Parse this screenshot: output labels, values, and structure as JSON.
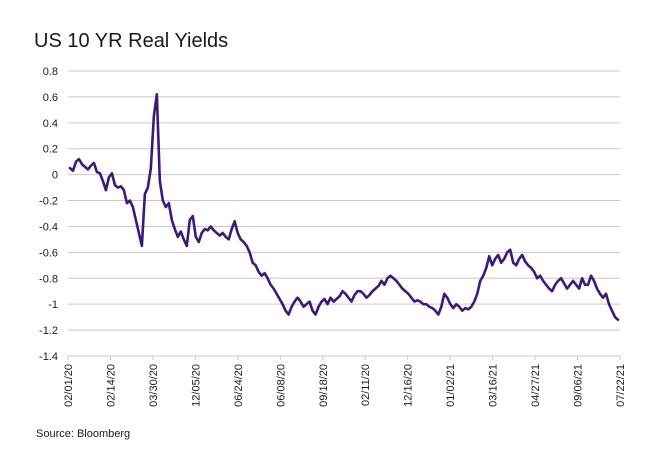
{
  "chart_data": {
    "type": "line",
    "title": "US 10 YR Real Yields",
    "xlabel": "",
    "ylabel": "",
    "ylim": [
      -1.4,
      0.8
    ],
    "yticks": [
      0.8,
      0.6,
      0.4,
      0.2,
      0,
      -0.2,
      -0.4,
      -0.6,
      -0.8,
      -1,
      -1.2,
      -1.4
    ],
    "ytick_labels": [
      "0.8",
      "0.6",
      "0.4",
      "0.2",
      "0",
      "-0.2",
      "-0.4",
      "-0.6",
      "-0.8",
      "-1",
      "-1.2",
      "-1.4"
    ],
    "xtick_labels": [
      "02/01/20",
      "02/14/20",
      "03/30/20",
      "12/05/20",
      "06/24/20",
      "06/08/20",
      "09/18/20",
      "02/11/20",
      "12/16/20",
      "01/02/21",
      "03/16/21",
      "04/27/21",
      "09/06/21",
      "07/22/21"
    ],
    "grid": "horizontal",
    "line_color": "#3d1a78",
    "series": [
      {
        "values": [
          0.05,
          0.03,
          0.1,
          0.12,
          0.08,
          0.06,
          0.04,
          0.07,
          0.09,
          0.02,
          0.01,
          -0.05,
          -0.12,
          -0.02,
          0.01,
          -0.08,
          -0.1,
          -0.09,
          -0.12,
          -0.22,
          -0.2,
          -0.25,
          -0.35,
          -0.45,
          -0.55,
          -0.15,
          -0.1,
          0.05,
          0.45,
          0.62,
          -0.05,
          -0.2,
          -0.25,
          -0.22,
          -0.35,
          -0.42,
          -0.48,
          -0.44,
          -0.5,
          -0.55,
          -0.35,
          -0.32,
          -0.48,
          -0.52,
          -0.45,
          -0.42,
          -0.43,
          -0.4,
          -0.43,
          -0.45,
          -0.47,
          -0.45,
          -0.48,
          -0.5,
          -0.42,
          -0.36,
          -0.45,
          -0.5,
          -0.52,
          -0.55,
          -0.6,
          -0.68,
          -0.7,
          -0.75,
          -0.78,
          -0.76,
          -0.8,
          -0.85,
          -0.88,
          -0.92,
          -0.96,
          -1.0,
          -1.05,
          -1.08,
          -1.02,
          -0.98,
          -0.95,
          -0.98,
          -1.02,
          -1.0,
          -0.98,
          -1.05,
          -1.08,
          -1.02,
          -0.98,
          -0.96,
          -1.0,
          -0.95,
          -0.98,
          -0.96,
          -0.94,
          -0.9,
          -0.92,
          -0.95,
          -0.98,
          -0.93,
          -0.9,
          -0.9,
          -0.92,
          -0.95,
          -0.93,
          -0.9,
          -0.88,
          -0.86,
          -0.82,
          -0.85,
          -0.8,
          -0.78,
          -0.8,
          -0.82,
          -0.85,
          -0.88,
          -0.9,
          -0.92,
          -0.95,
          -0.98,
          -0.97,
          -0.98,
          -1.0,
          -1.0,
          -1.02,
          -1.03,
          -1.05,
          -1.08,
          -1.02,
          -0.92,
          -0.95,
          -1.0,
          -1.03,
          -1.0,
          -1.02,
          -1.05,
          -1.03,
          -1.04,
          -1.02,
          -0.98,
          -0.92,
          -0.82,
          -0.78,
          -0.72,
          -0.63,
          -0.7,
          -0.65,
          -0.62,
          -0.68,
          -0.65,
          -0.6,
          -0.58,
          -0.68,
          -0.7,
          -0.65,
          -0.62,
          -0.67,
          -0.7,
          -0.72,
          -0.75,
          -0.8,
          -0.78,
          -0.82,
          -0.85,
          -0.88,
          -0.9,
          -0.85,
          -0.82,
          -0.8,
          -0.84,
          -0.88,
          -0.85,
          -0.82,
          -0.85,
          -0.88,
          -0.8,
          -0.85,
          -0.85,
          -0.78,
          -0.82,
          -0.88,
          -0.92,
          -0.95,
          -0.92,
          -1.0,
          -1.05,
          -1.1,
          -1.12
        ]
      }
    ]
  },
  "footer": {
    "source": "Source: Bloomberg"
  }
}
